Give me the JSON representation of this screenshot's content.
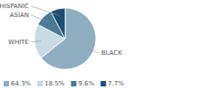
{
  "chart_data": {
    "type": "pie",
    "categories": [
      "BLACK",
      "WHITE",
      "ASIAN",
      "HISPANIC"
    ],
    "values": [
      64.3,
      18.5,
      9.6,
      7.7
    ],
    "value_labels": [
      "64.3%",
      "18.5%",
      "9.6%",
      "7.7%"
    ],
    "colors": [
      "#8fafc0",
      "#c8dae3",
      "#4a7a96",
      "#1c4f72"
    ],
    "legend": "bottom"
  }
}
